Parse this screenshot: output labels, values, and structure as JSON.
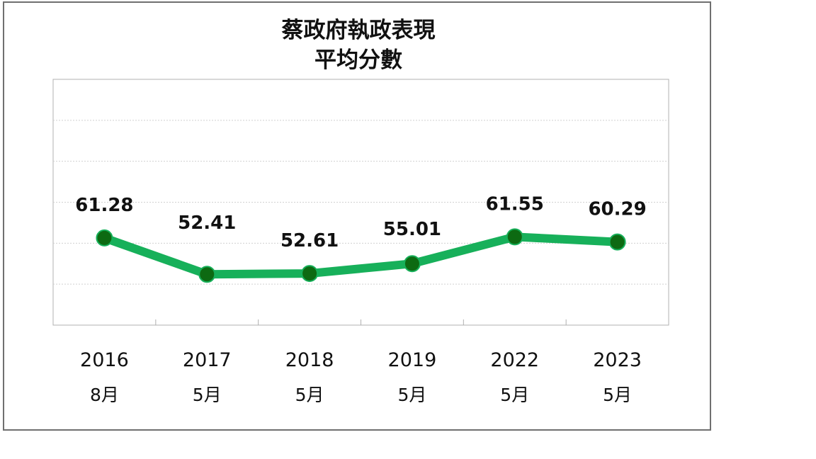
{
  "chart_data": {
    "type": "line",
    "title": [
      "蔡政府執政表現",
      "平均分數"
    ],
    "categories": [
      [
        "2016",
        "8月"
      ],
      [
        "2017",
        "5月"
      ],
      [
        "2018",
        "5月"
      ],
      [
        "2019",
        "5月"
      ],
      [
        "2022",
        "5月"
      ],
      [
        "2023",
        "5月"
      ]
    ],
    "series": [
      {
        "values": [
          61.28,
          52.41,
          52.61,
          55.01,
          61.55,
          60.29
        ],
        "labels": [
          "61.28",
          "52.41",
          "52.61",
          "55.01",
          "61.55",
          "60.29"
        ]
      }
    ],
    "ylim": [
      40,
      100
    ],
    "grid": true,
    "legend": "none",
    "line_color": "#17b05a",
    "marker_color": "#0d6a12"
  }
}
